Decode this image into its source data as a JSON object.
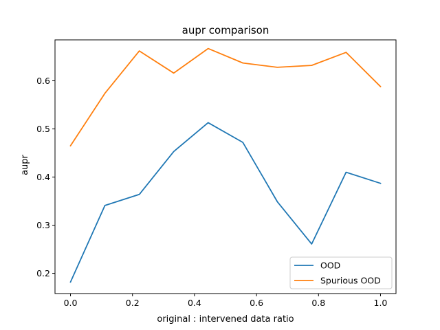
{
  "chart_data": {
    "type": "line",
    "title": "aupr comparison",
    "xlabel": "original : intervened data ratio",
    "ylabel": "aupr",
    "xlim": [
      -0.05,
      1.05
    ],
    "ylim": [
      0.158,
      0.685
    ],
    "x": [
      0.0,
      0.111,
      0.222,
      0.333,
      0.444,
      0.556,
      0.667,
      0.778,
      0.889,
      1.0
    ],
    "xticks": [
      0.0,
      0.2,
      0.4,
      0.6,
      0.8,
      1.0
    ],
    "xtick_labels": [
      "0.0",
      "0.2",
      "0.4",
      "0.6",
      "0.8",
      "1.0"
    ],
    "yticks": [
      0.2,
      0.3,
      0.4,
      0.5,
      0.6
    ],
    "ytick_labels": [
      "0.2",
      "0.3",
      "0.4",
      "0.5",
      "0.6"
    ],
    "grid": false,
    "legend_position": "lower-right",
    "series": [
      {
        "name": "OOD",
        "color": "#1f77b4",
        "values": [
          0.182,
          0.341,
          0.364,
          0.453,
          0.513,
          0.472,
          0.349,
          0.261,
          0.41,
          0.387
        ]
      },
      {
        "name": "Spurious OOD",
        "color": "#ff7f0e",
        "values": [
          0.465,
          0.574,
          0.662,
          0.616,
          0.667,
          0.637,
          0.628,
          0.632,
          0.659,
          0.588
        ]
      }
    ]
  }
}
